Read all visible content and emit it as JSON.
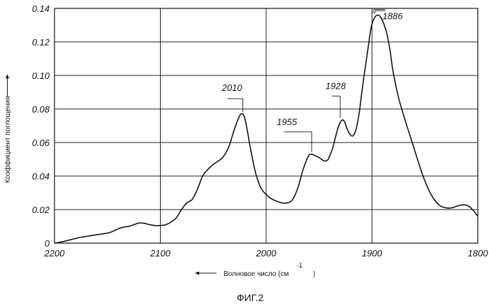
{
  "chart_data": {
    "type": "line",
    "title": "",
    "xlabel": "Волновое число (см",
    "xlabel_sup": "-1",
    "xlabel_close": ")",
    "ylabel": "Коэффициент поглощения",
    "caption": "ФИГ.2",
    "xlim": [
      2200,
      1800
    ],
    "ylim": [
      0,
      0.14
    ],
    "x_ticks": [
      2200,
      2100,
      2000,
      1900,
      1800
    ],
    "y_ticks": [
      0,
      0.02,
      0.04,
      0.06,
      0.08,
      0.1,
      0.12,
      0.14
    ],
    "x_tick_labels": [
      "2200",
      "2100",
      "2000",
      "1900",
      "1800"
    ],
    "y_tick_labels": [
      "0",
      "0.02",
      "0.04",
      "0.06",
      "0.08",
      "0.10",
      "0.12",
      "0.14"
    ],
    "grid": true,
    "x_reversed": true,
    "series": [
      {
        "x": [
          2200,
          2195,
          2190,
          2185,
          2180,
          2175,
          2170,
          2165,
          2160,
          2155,
          2150,
          2145,
          2140,
          2135,
          2130,
          2125,
          2120,
          2115,
          2110,
          2105,
          2100,
          2095,
          2090,
          2085,
          2080,
          2075,
          2070,
          2065,
          2060,
          2055,
          2050,
          2045,
          2040,
          2035,
          2030,
          2025,
          2022,
          2020,
          2018,
          2015,
          2010,
          2005,
          2000,
          1995,
          1990,
          1985,
          1980,
          1975,
          1970,
          1965,
          1960,
          1957,
          1955,
          1950,
          1945,
          1942,
          1940,
          1937,
          1935,
          1932,
          1930,
          1928,
          1926,
          1924,
          1921,
          1918,
          1915,
          1912,
          1910,
          1907,
          1904,
          1901,
          1898,
          1895,
          1892,
          1889,
          1886,
          1883,
          1880,
          1875,
          1870,
          1865,
          1860,
          1855,
          1850,
          1845,
          1840,
          1835,
          1830,
          1825,
          1820,
          1815,
          1810,
          1805,
          1800
        ],
        "y": [
          0.0,
          0.0005,
          0.0012,
          0.002,
          0.0028,
          0.0035,
          0.004,
          0.0045,
          0.005,
          0.0055,
          0.006,
          0.007,
          0.0085,
          0.0095,
          0.01,
          0.011,
          0.012,
          0.0118,
          0.011,
          0.0105,
          0.0105,
          0.011,
          0.0125,
          0.015,
          0.02,
          0.024,
          0.026,
          0.032,
          0.04,
          0.044,
          0.047,
          0.049,
          0.052,
          0.058,
          0.068,
          0.076,
          0.077,
          0.074,
          0.068,
          0.057,
          0.042,
          0.033,
          0.029,
          0.0265,
          0.025,
          0.024,
          0.024,
          0.026,
          0.033,
          0.044,
          0.052,
          0.053,
          0.0525,
          0.051,
          0.049,
          0.0495,
          0.052,
          0.057,
          0.062,
          0.069,
          0.072,
          0.0735,
          0.0725,
          0.069,
          0.065,
          0.064,
          0.068,
          0.078,
          0.088,
          0.102,
          0.115,
          0.128,
          0.134,
          0.136,
          0.135,
          0.131,
          0.125,
          0.115,
          0.102,
          0.087,
          0.076,
          0.066,
          0.056,
          0.046,
          0.037,
          0.03,
          0.025,
          0.022,
          0.021,
          0.021,
          0.022,
          0.0228,
          0.0225,
          0.02,
          0.016
        ]
      }
    ],
    "annotations": [
      {
        "label": "2010",
        "x": 2022,
        "y": 0.077
      },
      {
        "label": "1955",
        "x": 1957,
        "y": 0.053
      },
      {
        "label": "1928",
        "x": 1930,
        "y": 0.0735
      },
      {
        "label": "1886",
        "x": 1898,
        "y": 0.136
      }
    ]
  }
}
